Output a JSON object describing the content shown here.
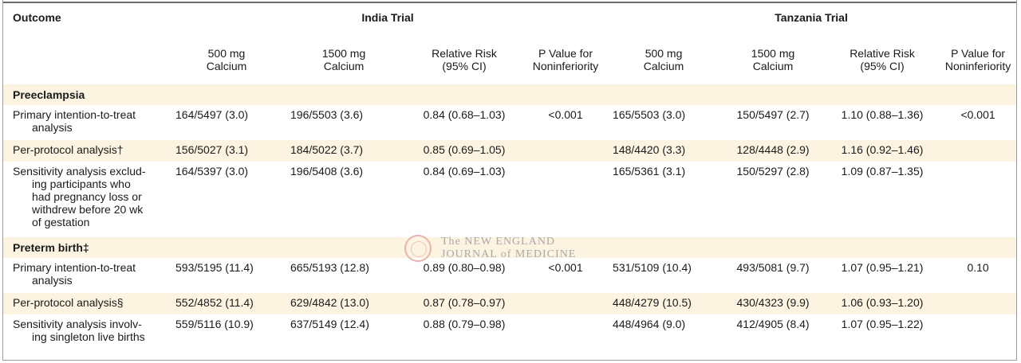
{
  "headers": {
    "outcome": "Outcome",
    "india_trial": "India Trial",
    "tanzania_trial": "Tanzania Trial",
    "col_500": [
      "500 mg",
      "Calcium"
    ],
    "col_1500": [
      "1500 mg",
      "Calcium"
    ],
    "col_rr": [
      "Relative Risk",
      "(95% CI)"
    ],
    "col_p": [
      "P Value for",
      "Noninferiority"
    ]
  },
  "sections": [
    {
      "title": "Preeclampsia",
      "rows": [
        {
          "label": [
            "Primary intention-to-treat",
            "analysis"
          ],
          "india_500": "164/5497 (3.0)",
          "india_1500": "196/5503 (3.6)",
          "india_rr": "0.84 (0.68–1.03)",
          "india_p": "<0.001",
          "tz_500": "165/5503 (3.0)",
          "tz_1500": "150/5497 (2.7)",
          "tz_rr": "1.10 (0.88–1.36)",
          "tz_p": "<0.001"
        },
        {
          "label": [
            "Per-protocol analysis†"
          ],
          "india_500": "156/5027 (3.1)",
          "india_1500": "184/5022 (3.7)",
          "india_rr": "0.85 (0.69–1.05)",
          "india_p": "",
          "tz_500": "148/4420 (3.3)",
          "tz_1500": "128/4448 (2.9)",
          "tz_rr": "1.16 (0.92–1.46)",
          "tz_p": ""
        },
        {
          "label": [
            "Sensitivity analysis exclud-",
            "ing participants who",
            "had pregnancy loss or",
            "withdrew before 20 wk",
            "of gestation"
          ],
          "india_500": "164/5397 (3.0)",
          "india_1500": "196/5408 (3.6)",
          "india_rr": "0.84 (0.69–1.03)",
          "india_p": "",
          "tz_500": "165/5361 (3.1)",
          "tz_1500": "150/5297 (2.8)",
          "tz_rr": "1.09 (0.87–1.35)",
          "tz_p": ""
        }
      ]
    },
    {
      "title": "Preterm birth‡",
      "rows": [
        {
          "label": [
            "Primary intention-to-treat",
            "analysis"
          ],
          "india_500": "593/5195 (11.4)",
          "india_1500": "665/5193 (12.8)",
          "india_rr": "0.89 (0.80–0.98)",
          "india_p": "<0.001",
          "tz_500": "531/5109 (10.4)",
          "tz_1500": "493/5081 (9.7)",
          "tz_rr": "1.07 (0.95–1.21)",
          "tz_p": "0.10"
        },
        {
          "label": [
            "Per-protocol analysis§"
          ],
          "india_500": "552/4852 (11.4)",
          "india_1500": "629/4842 (13.0)",
          "india_rr": "0.87 (0.78–0.97)",
          "india_p": "",
          "tz_500": "448/4279 (10.5)",
          "tz_1500": "430/4323 (9.9)",
          "tz_rr": "1.06 (0.93–1.20)",
          "tz_p": ""
        },
        {
          "label": [
            "Sensitivity analysis involv-",
            "ing singleton live births"
          ],
          "india_500": "559/5116 (10.9)",
          "india_1500": "637/5149 (12.4)",
          "india_rr": "0.88 (0.79–0.98)",
          "india_p": "",
          "tz_500": "448/4964 (9.0)",
          "tz_1500": "412/4905 (8.4)",
          "tz_rr": "1.07 (0.95–1.22)",
          "tz_p": ""
        }
      ]
    }
  ],
  "watermark": {
    "line1": "The NEW ENGLAND",
    "line2": "JOURNAL of MEDICINE"
  }
}
